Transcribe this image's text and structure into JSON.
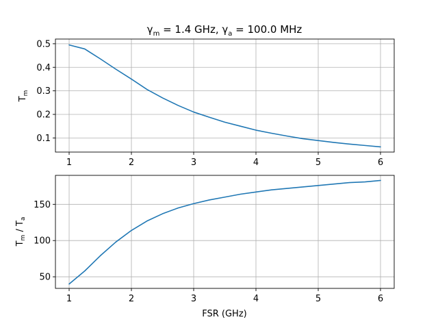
{
  "chart_data": [
    {
      "type": "line",
      "title_parts": {
        "gamma": "γ",
        "sub_m": "m",
        "mid": " = 1.4 GHz, ",
        "sub_a": "a",
        "end": " = 100.0 MHz"
      },
      "title": "γm = 1.4 GHz, γa = 100.0 MHz",
      "xlabel": "",
      "ylabel_main": "T",
      "ylabel_sub": "m",
      "xlim": [
        0.78,
        6.22
      ],
      "ylim": [
        0.04,
        0.52
      ],
      "xticks": [
        1,
        2,
        3,
        4,
        5,
        6
      ],
      "xtick_labels": [
        "1",
        "2",
        "3",
        "4",
        "5",
        "6"
      ],
      "yticks": [
        0.1,
        0.2,
        0.3,
        0.4,
        0.5
      ],
      "ytick_labels": [
        "0.1",
        "0.2",
        "0.3",
        "0.4",
        "0.5"
      ],
      "grid": true,
      "color": "#1f77b4",
      "series": [
        {
          "name": "T_m",
          "x": [
            1.0,
            1.25,
            1.5,
            1.75,
            2.0,
            2.25,
            2.5,
            2.75,
            3.0,
            3.25,
            3.5,
            3.75,
            4.0,
            4.25,
            4.5,
            4.75,
            5.0,
            5.25,
            5.5,
            5.75,
            6.0
          ],
          "values": [
            0.495,
            0.478,
            0.436,
            0.392,
            0.35,
            0.306,
            0.27,
            0.238,
            0.21,
            0.188,
            0.167,
            0.15,
            0.133,
            0.12,
            0.108,
            0.097,
            0.089,
            0.081,
            0.074,
            0.068,
            0.062
          ]
        }
      ]
    },
    {
      "type": "line",
      "title": "",
      "xlabel": "FSR (GHz)",
      "ylabel_main": "T",
      "ylabel_sub": "m",
      "ylabel_rest": " / T",
      "ylabel_sub2": "a",
      "xlim": [
        0.78,
        6.22
      ],
      "ylim": [
        34,
        190
      ],
      "xticks": [
        1,
        2,
        3,
        4,
        5,
        6
      ],
      "xtick_labels": [
        "1",
        "2",
        "3",
        "4",
        "5",
        "6"
      ],
      "yticks": [
        50,
        100,
        150
      ],
      "ytick_labels": [
        "50",
        "100",
        "150"
      ],
      "grid": true,
      "color": "#1f77b4",
      "series": [
        {
          "name": "T_m / T_a",
          "x": [
            1.0,
            1.25,
            1.5,
            1.75,
            2.0,
            2.25,
            2.5,
            2.75,
            3.0,
            3.25,
            3.5,
            3.75,
            4.0,
            4.25,
            4.5,
            4.75,
            5.0,
            5.25,
            5.5,
            5.75,
            6.0
          ],
          "values": [
            40,
            58,
            79,
            98,
            114,
            127,
            137,
            145,
            151,
            156,
            160,
            164,
            167,
            170,
            172,
            174,
            176,
            178,
            180,
            181,
            183
          ]
        }
      ]
    }
  ]
}
